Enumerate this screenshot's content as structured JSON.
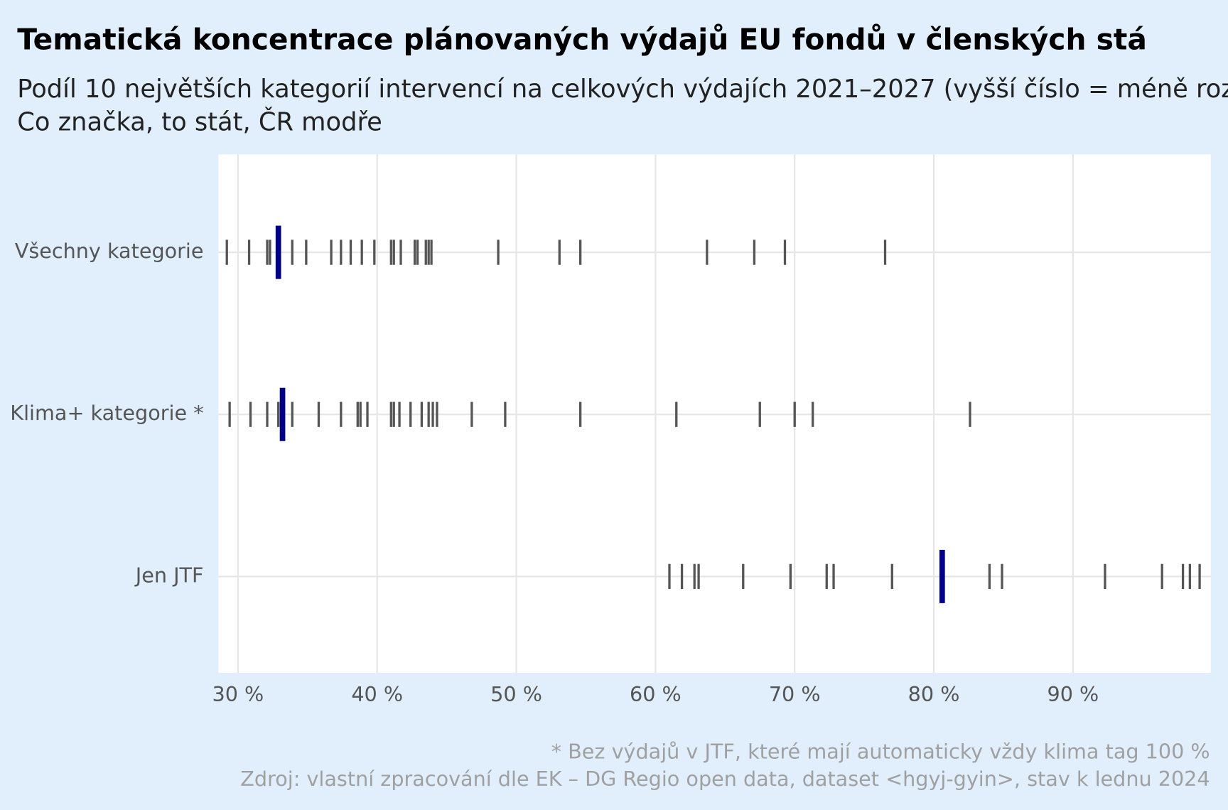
{
  "chart_data": {
    "type": "strip",
    "title": "Tematická koncentrace plánovaných výdajů EU fondů v členských stá",
    "subtitle": "Podíl 10 největších kategorií intervencí na celkových výdajích 2021–2027 (vyšší číslo = méně roz",
    "subtitle2": "Co značka, to stát, ČR modře",
    "footnote": "* Bez výdajů v JTF, které mají automaticky vždy klima tag 100 %",
    "source": "Zdroj: vlastní zpracování dle EK – DG Regio open data, dataset <hgyj-gyin>, stav k lednu 2024",
    "color": "#555555",
    "highlight_color": "#00008b",
    "grid": true,
    "xlim": [
      28.6,
      99.9
    ],
    "xticks": [
      {
        "value": 30,
        "label": "30 %"
      },
      {
        "value": 40,
        "label": "40 %"
      },
      {
        "value": 50,
        "label": "50 %"
      },
      {
        "value": 60,
        "label": "60 %"
      },
      {
        "value": 70,
        "label": "70 %"
      },
      {
        "value": 80,
        "label": "80 %"
      },
      {
        "value": 90,
        "label": "90 %"
      }
    ],
    "rows": [
      {
        "label": "Všechny kategorie",
        "highlight": 32.9,
        "values": [
          29.2,
          30.8,
          32.1,
          32.3,
          33.9,
          34.9,
          36.7,
          37.4,
          38.1,
          38.9,
          39.8,
          41.0,
          41.2,
          41.7,
          42.7,
          42.9,
          43.5,
          43.7,
          43.9,
          48.7,
          53.1,
          54.6,
          63.7,
          67.1,
          69.3,
          76.5
        ]
      },
      {
        "label": "Klima+ kategorie *",
        "highlight": 33.2,
        "values": [
          29.4,
          30.9,
          32.1,
          32.9,
          33.9,
          35.8,
          37.4,
          38.6,
          38.8,
          39.3,
          41.0,
          41.2,
          41.6,
          42.4,
          43.2,
          43.7,
          44.0,
          44.3,
          46.8,
          49.2,
          54.6,
          61.5,
          67.5,
          70.0,
          71.3,
          82.6
        ]
      },
      {
        "label": "Jen JTF",
        "highlight": 80.6,
        "values": [
          61.0,
          61.9,
          62.8,
          63.1,
          66.3,
          69.7,
          72.3,
          72.8,
          77.0,
          84.0,
          84.9,
          92.3,
          96.4,
          97.9,
          98.4,
          99.1
        ]
      }
    ]
  }
}
